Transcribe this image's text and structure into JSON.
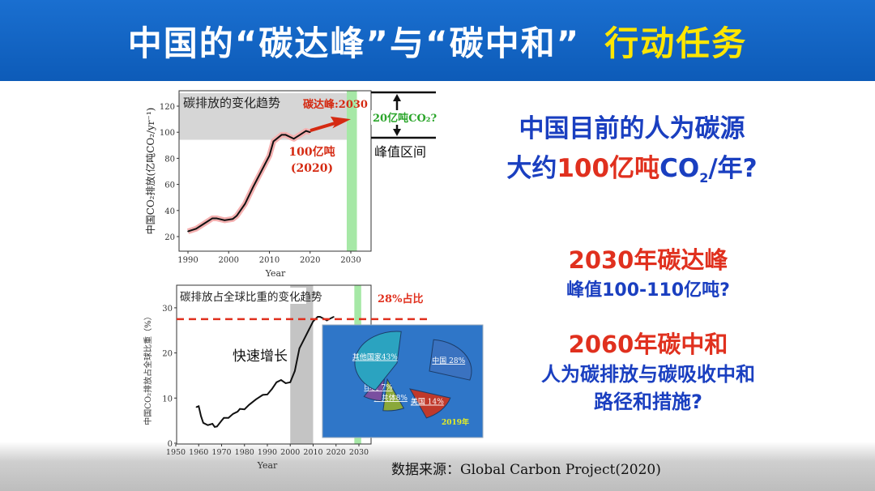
{
  "header": {
    "title": "中国的“碳达峰”与“碳中和”",
    "title_highlight": "行动任务"
  },
  "right": {
    "q1_line1": "中国目前的人为碳源",
    "q1_line2_a": "大约",
    "q1_line2_b": "100亿吨",
    "q1_line2_c": "CO",
    "q1_line2_sub": "2",
    "q1_line2_d": "/年?",
    "peak_title": "2030年碳达峰",
    "peak_sub": "峰值100-110亿吨?",
    "neutral_title": "2060年碳中和",
    "neutral_l1": "人为碳排放与碳吸收中和",
    "neutral_l2": "路径和措施?"
  },
  "source": "数据来源：Global Carbon Project(2020)",
  "colors": {
    "header": "#0d5bb8",
    "title_highlight": "#ffe600",
    "red": "#e0301e",
    "blue": "#1a3fc0",
    "green": "#2aa52a",
    "peak_band": "#a6e8a6"
  },
  "chart_data": [
    {
      "type": "line",
      "title": "碳排放的变化趋势",
      "xlabel": "Year",
      "ylabel": "中国CO₂排放(亿吨CO₂/yr⁻¹)",
      "xlim": [
        1988,
        2035
      ],
      "ylim": [
        10,
        130
      ],
      "xticks": [
        1990,
        2000,
        2010,
        2020,
        2030
      ],
      "yticks": [
        20,
        40,
        60,
        80,
        100,
        120
      ],
      "x": [
        1990,
        1992,
        1994,
        1996,
        1997,
        1999,
        2001,
        2002,
        2004,
        2006,
        2008,
        2009,
        2010,
        2011,
        2013,
        2014,
        2016,
        2017,
        2018,
        2019,
        2020
      ],
      "y": [
        24,
        26,
        30,
        34,
        34,
        32.5,
        33.5,
        36,
        45,
        58,
        70,
        76,
        82,
        93,
        98,
        98,
        95,
        97,
        99,
        101,
        100
      ],
      "peak_range": [
        96,
        130
      ],
      "peak_year": 2030,
      "annotations": {
        "peak": "碳达峰:2030",
        "current": "100亿吨",
        "current_year": "(2020)",
        "range_amount": "20亿吨CO₂?",
        "range_label": "峰值区间"
      }
    },
    {
      "type": "line",
      "title": "碳排放占全球比重的变化趋势",
      "xlabel": "Year",
      "ylabel": "中国CO₂排放占全球比重（%）",
      "xlim": [
        1950,
        2035
      ],
      "ylim": [
        0,
        35
      ],
      "xticks": [
        1950,
        1960,
        1970,
        1980,
        1990,
        2000,
        2010,
        2020,
        2030
      ],
      "yticks": [
        0,
        10,
        20,
        30
      ],
      "x": [
        1959,
        1960,
        1961,
        1962,
        1964,
        1966,
        1967,
        1968,
        1970,
        1971,
        1973,
        1975,
        1977,
        1978,
        1980,
        1982,
        1985,
        1988,
        1990,
        1992,
        1994,
        1996,
        1998,
        2000,
        2002,
        2004,
        2006,
        2008,
        2010,
        2012,
        2013,
        2015,
        2016,
        2017,
        2019
      ],
      "y": [
        8,
        8.2,
        6,
        4.5,
        4,
        4.3,
        3.6,
        3.7,
        5,
        5.6,
        5.6,
        6.5,
        7,
        7.6,
        7.5,
        8.5,
        9.7,
        10.7,
        10.8,
        12,
        13.5,
        14,
        13.3,
        13.5,
        16,
        21,
        23,
        25,
        27,
        28,
        28,
        27.5,
        27.2,
        27.5,
        28
      ],
      "reference_line": 27.5,
      "shaded_period": [
        2000,
        2010
      ],
      "annotations": {
        "growth": "快速增长",
        "share": "28%占比"
      }
    },
    {
      "type": "pie",
      "title": "2019年",
      "categories": [
        "中国",
        "美国",
        "欧共体",
        "印度",
        "其他国家"
      ],
      "values": [
        28,
        14,
        8,
        7,
        43
      ],
      "labels": [
        "中国 28%",
        "美国 14%",
        "欧共体8%",
        "印度 7%",
        "其他国家43%"
      ]
    }
  ]
}
